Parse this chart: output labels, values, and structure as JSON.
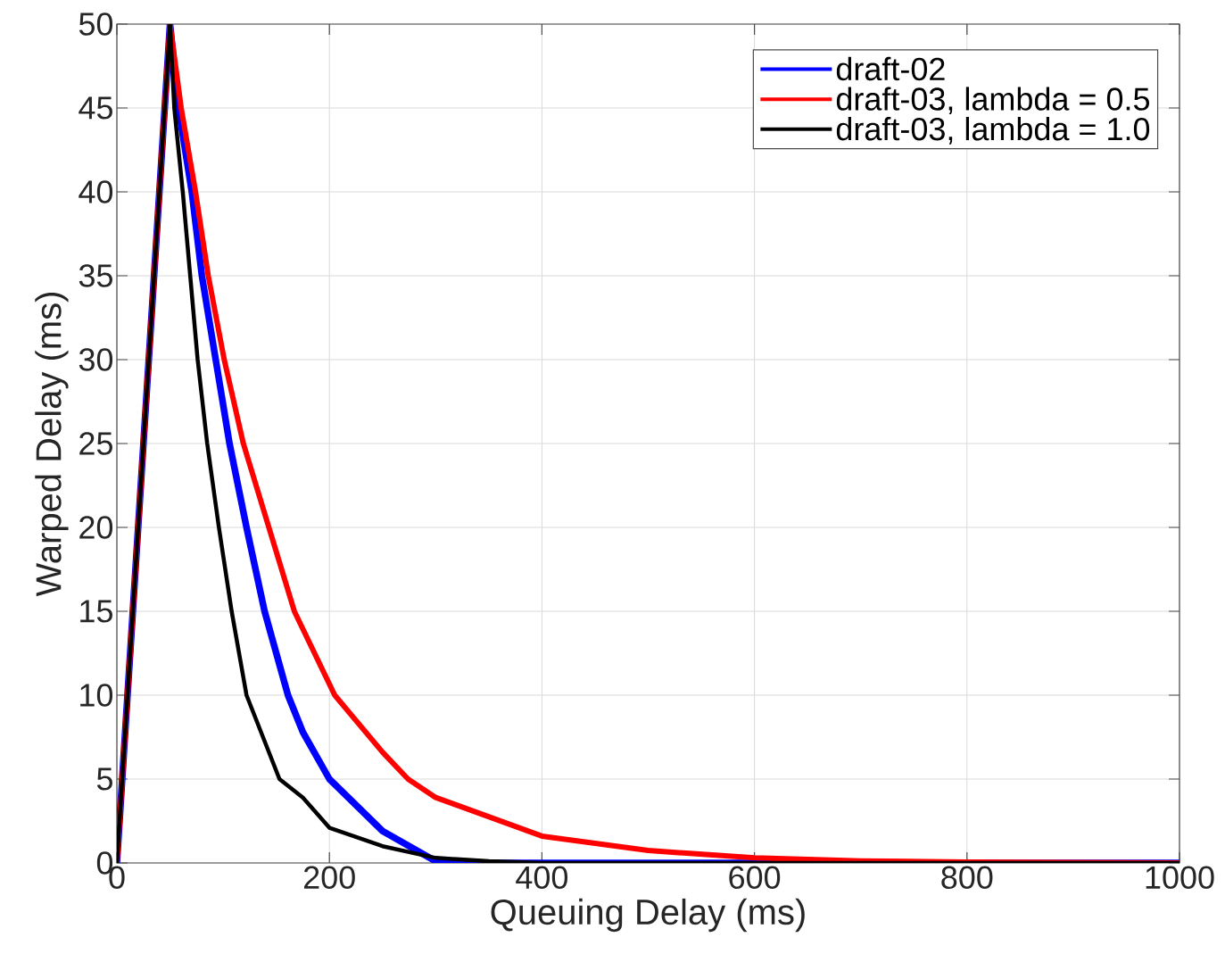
{
  "chart_data": {
    "type": "line",
    "xlabel": "Queuing Delay (ms)",
    "ylabel": "Warped Delay (ms)",
    "xlim": [
      0,
      1000
    ],
    "ylim": [
      0,
      50
    ],
    "xticks": [
      0,
      200,
      400,
      600,
      800,
      1000
    ],
    "yticks": [
      0,
      5,
      10,
      15,
      20,
      25,
      30,
      35,
      40,
      45,
      50
    ],
    "grid": true,
    "legend": "top right",
    "line_style": "solid",
    "marker": "none",
    "series": [
      {
        "name": "draft-02",
        "color": "#0000ff",
        "x": [
          0,
          50,
          58,
          70.5,
          80,
          93,
          106,
          122,
          139,
          161,
          175,
          200,
          250,
          300,
          350,
          1000
        ],
        "values": [
          0,
          50,
          45,
          40,
          35,
          30,
          25,
          20,
          15,
          10,
          7.8,
          5,
          1.9,
          0.1,
          0,
          0
        ]
      },
      {
        "name": "draft-03, lambda = 0.5",
        "color": "#ff0000",
        "x": [
          0,
          50,
          60.5,
          74,
          86,
          101,
          119,
          143,
          167,
          205,
          250,
          274,
          300,
          400,
          500,
          600,
          700,
          800,
          900,
          1000
        ],
        "values": [
          0,
          50,
          45,
          40,
          35,
          30,
          25,
          20,
          15,
          10,
          6.6,
          5,
          3.9,
          1.6,
          0.74,
          0.3,
          0.12,
          0.05,
          0.02,
          0
        ]
      },
      {
        "name": "draft-03, lambda = 1.0",
        "color": "#000000",
        "x": [
          0,
          50,
          54,
          62,
          69,
          76,
          85,
          96,
          108,
          122,
          153,
          175,
          200,
          250,
          300,
          350,
          400,
          1000
        ],
        "values": [
          0,
          50,
          45,
          40,
          35,
          30,
          25,
          20,
          15,
          10,
          5,
          3.9,
          2.1,
          1.0,
          0.3,
          0.1,
          0,
          0
        ]
      }
    ]
  }
}
